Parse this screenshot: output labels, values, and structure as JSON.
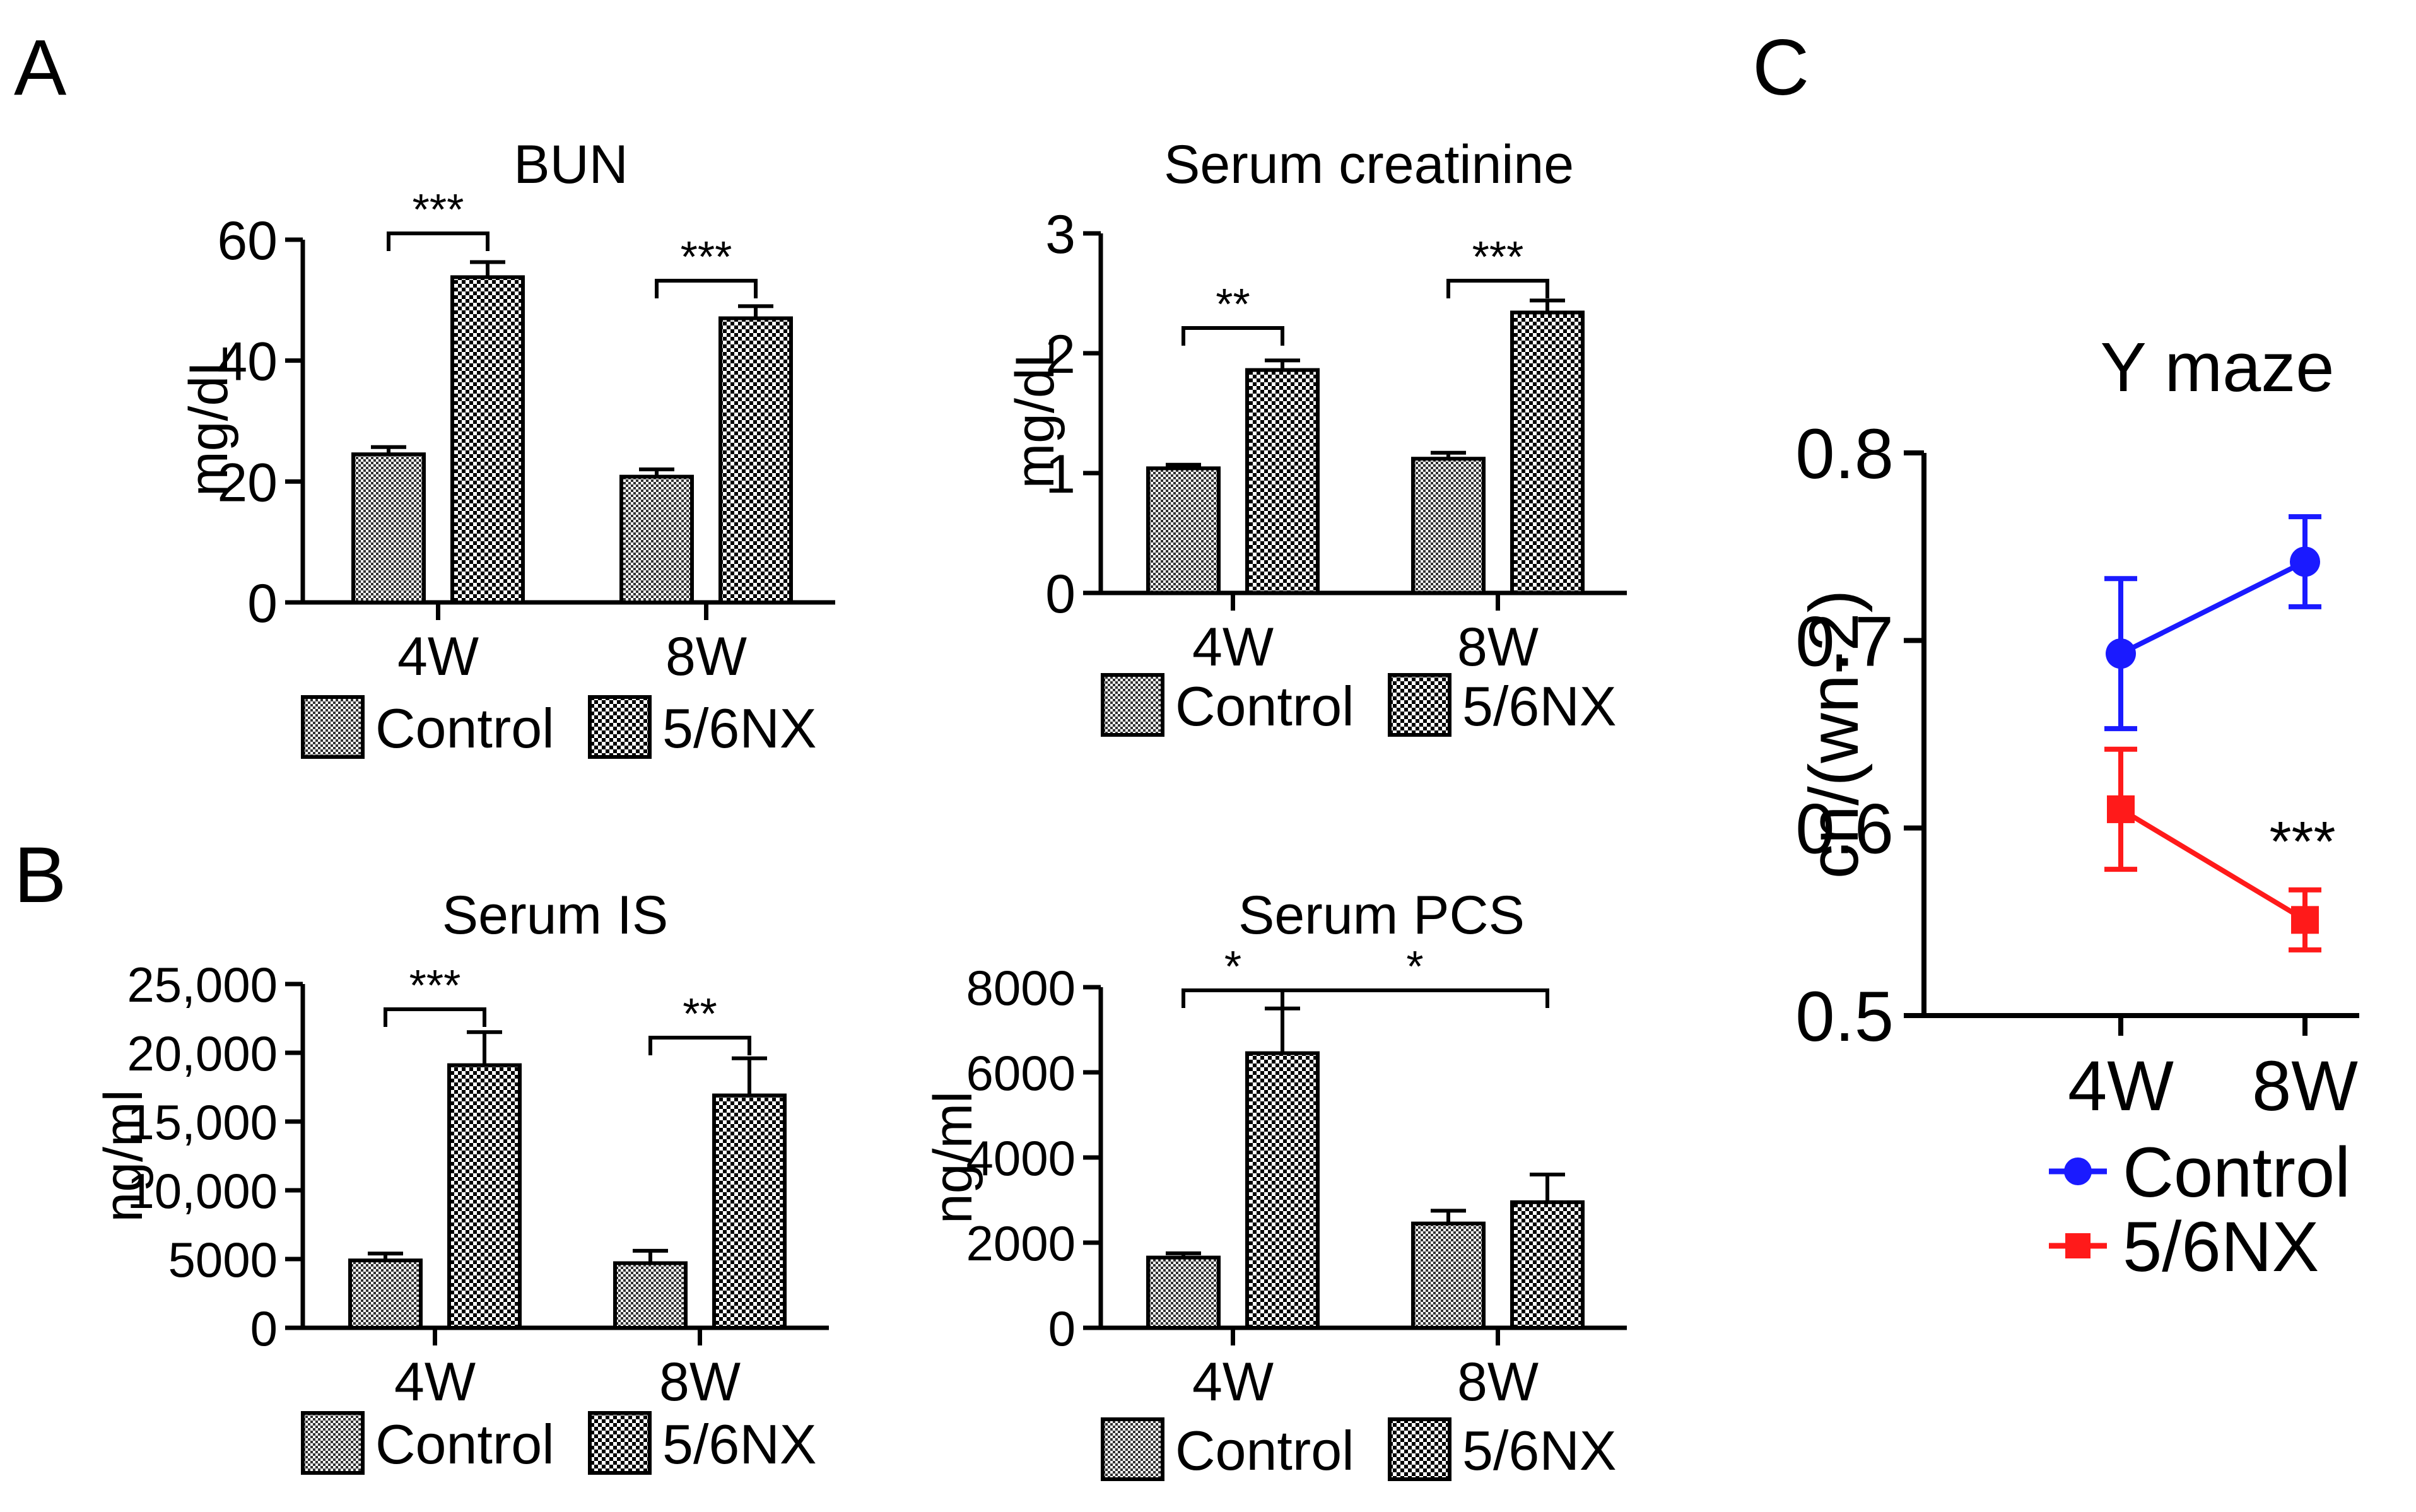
{
  "panels": {
    "A": "A",
    "B": "B",
    "C": "C"
  },
  "legend": {
    "control": "Control",
    "nx": "5/6NX"
  },
  "chart_data": [
    {
      "id": "bun",
      "type": "bar",
      "title": "BUN",
      "ylabel": "mg/dL",
      "categories": [
        "4W",
        "8W"
      ],
      "ylim": [
        0,
        60
      ],
      "yticks": [
        0,
        20,
        40,
        60
      ],
      "ytick_labels": [
        "0",
        "20",
        "40",
        "60"
      ],
      "series": [
        {
          "name": "Control",
          "values": [
            24.5,
            20.8
          ],
          "errors": [
            1.2,
            1.2
          ]
        },
        {
          "name": "5/6NX",
          "values": [
            53.8,
            47.0
          ],
          "errors": [
            2.5,
            2.0
          ]
        }
      ],
      "significance": [
        {
          "from": [
            0,
            0
          ],
          "to": [
            0,
            1
          ],
          "label": "***"
        },
        {
          "from": [
            1,
            0
          ],
          "to": [
            1,
            1
          ],
          "label": "***"
        }
      ]
    },
    {
      "id": "creatinine",
      "type": "bar",
      "title": "Serum creatinine",
      "ylabel": "mg/dL",
      "categories": [
        "4W",
        "8W"
      ],
      "ylim": [
        0,
        3
      ],
      "yticks": [
        0,
        1,
        2,
        3
      ],
      "ytick_labels": [
        "0",
        "1",
        "2",
        "3"
      ],
      "series": [
        {
          "name": "Control",
          "values": [
            1.04,
            1.12
          ],
          "errors": [
            0.03,
            0.05
          ]
        },
        {
          "name": "5/6NX",
          "values": [
            1.86,
            2.34
          ],
          "errors": [
            0.08,
            0.1
          ]
        }
      ],
      "significance": [
        {
          "from": [
            0,
            0
          ],
          "to": [
            0,
            1
          ],
          "label": "**"
        },
        {
          "from": [
            1,
            0
          ],
          "to": [
            1,
            1
          ],
          "label": "***"
        }
      ]
    },
    {
      "id": "is",
      "type": "bar",
      "title": "Serum IS",
      "ylabel": "ng/ml",
      "categories": [
        "4W",
        "8W"
      ],
      "ylim": [
        0,
        25000
      ],
      "yticks": [
        0,
        5000,
        10000,
        15000,
        20000,
        25000
      ],
      "ytick_labels": [
        "0",
        "5000",
        "10,000",
        "15,000",
        "20,000",
        "25,000"
      ],
      "series": [
        {
          "name": "Control",
          "values": [
            4900,
            4700
          ],
          "errors": [
            500,
            900
          ]
        },
        {
          "name": "5/6NX",
          "values": [
            19100,
            16900
          ],
          "errors": [
            2400,
            2700
          ]
        }
      ],
      "significance": [
        {
          "from": [
            0,
            0
          ],
          "to": [
            0,
            1
          ],
          "label": "***"
        },
        {
          "from": [
            1,
            0
          ],
          "to": [
            1,
            1
          ],
          "label": "**"
        }
      ]
    },
    {
      "id": "pcs",
      "type": "bar",
      "title": "Serum PCS",
      "ylabel": "ng/ml",
      "categories": [
        "4W",
        "8W"
      ],
      "ylim": [
        0,
        8000
      ],
      "yticks": [
        0,
        2000,
        4000,
        6000,
        8000
      ],
      "ytick_labels": [
        "0",
        "2000",
        "4000",
        "6000",
        "8000"
      ],
      "series": [
        {
          "name": "Control",
          "values": [
            1650,
            2450
          ],
          "errors": [
            100,
            300
          ]
        },
        {
          "name": "5/6NX",
          "values": [
            6450,
            2950
          ],
          "errors": [
            1050,
            650
          ]
        }
      ],
      "significance": [
        {
          "from": [
            0,
            0
          ],
          "to": [
            0,
            1
          ],
          "label": "*"
        },
        {
          "from": [
            0,
            1
          ],
          "to": [
            1,
            1
          ],
          "label": "*"
        }
      ]
    },
    {
      "id": "ymaze",
      "type": "line",
      "title": "Y maze",
      "ylabel": "cn/(wn-2)",
      "categories": [
        "4W",
        "8W"
      ],
      "ylim": [
        0.5,
        0.8
      ],
      "yticks": [
        0.5,
        0.6,
        0.7,
        0.8
      ],
      "ytick_labels": [
        "0.5",
        "0.6",
        "0.7",
        "0.8"
      ],
      "series": [
        {
          "name": "Control",
          "color": "#1a1aff",
          "marker": "circle",
          "values": [
            0.693,
            0.742
          ],
          "errors": [
            0.04,
            0.024
          ]
        },
        {
          "name": "5/6NX",
          "color": "#ff1a1a",
          "marker": "square",
          "values": [
            0.61,
            0.551
          ],
          "errors": [
            0.032,
            0.016
          ]
        }
      ],
      "annotation": {
        "label": "***",
        "category": 1
      },
      "legend_position": "bottom"
    }
  ]
}
